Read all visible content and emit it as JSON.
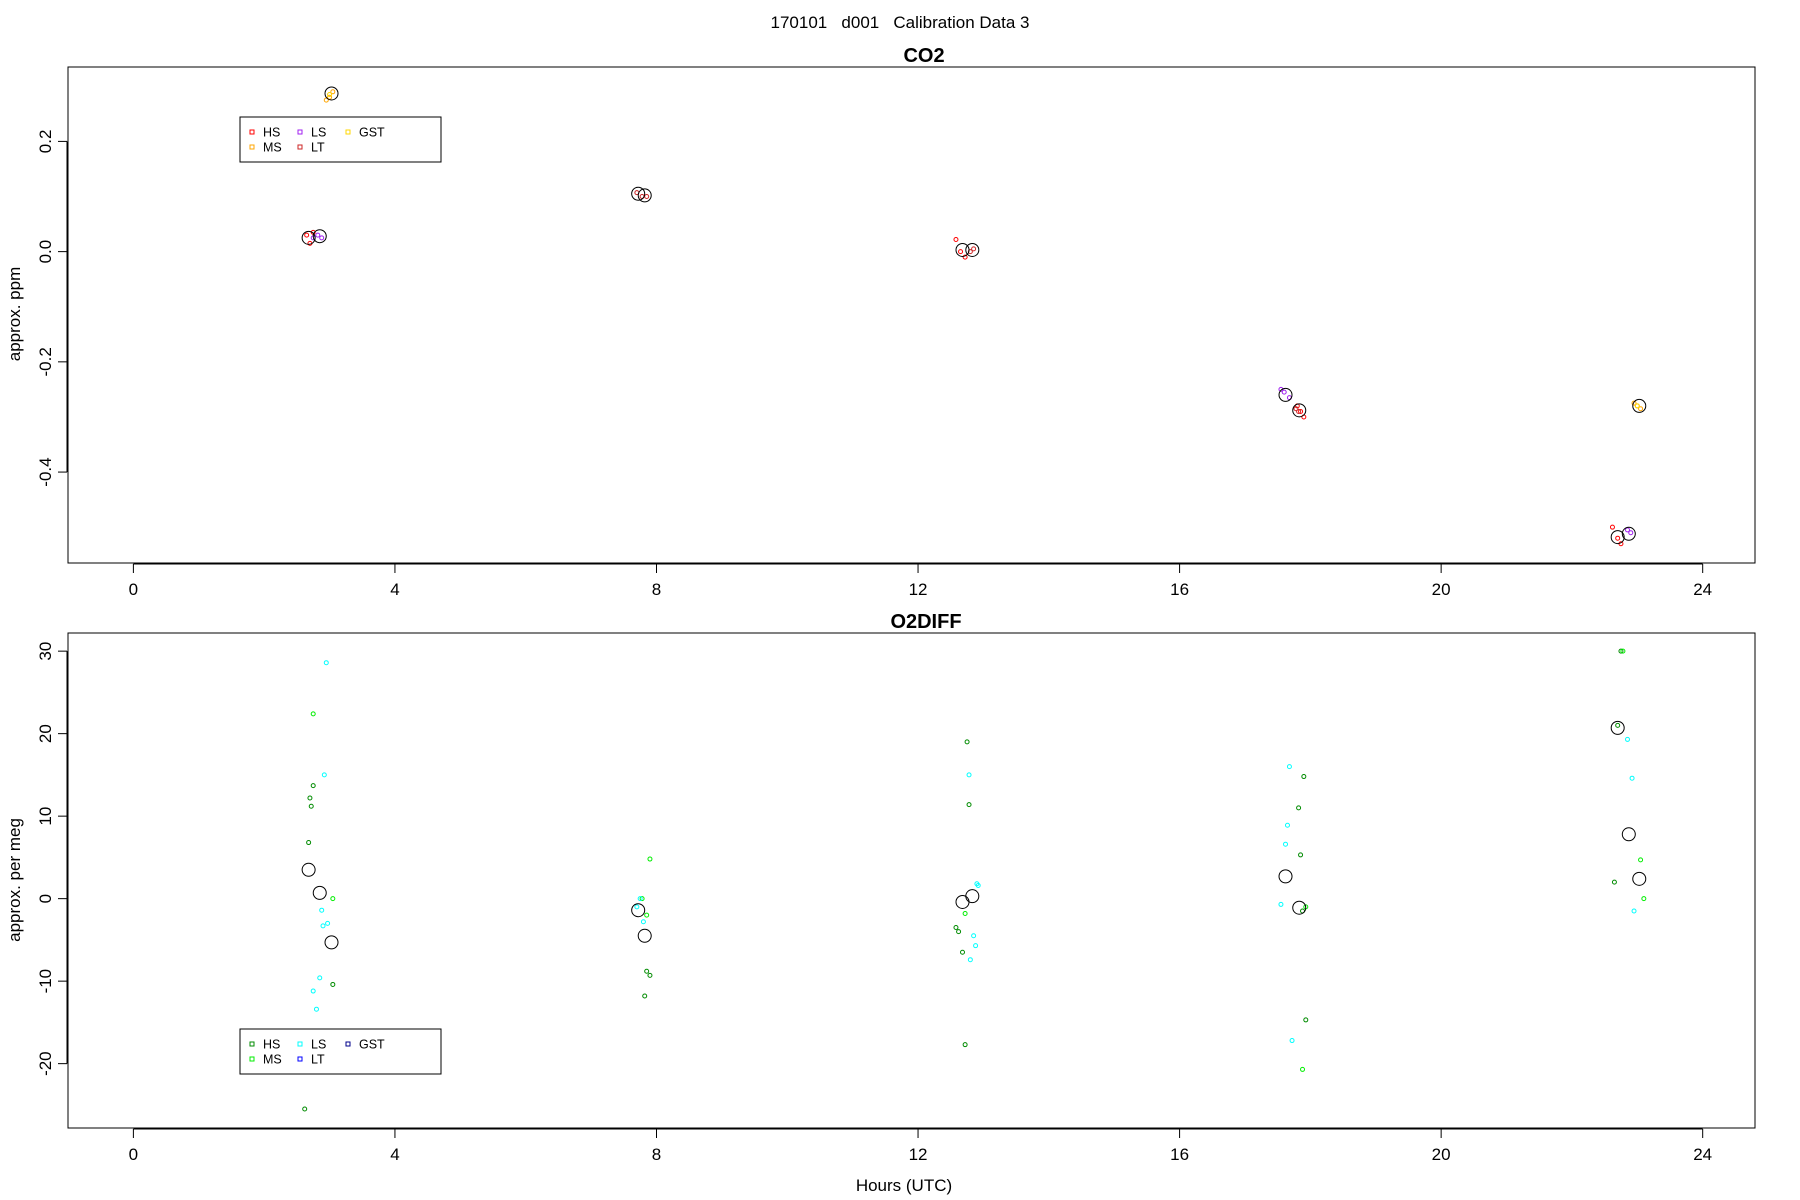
{
  "figure": {
    "title": "170101   d001   Calibration Data 3"
  },
  "chart_data": [
    {
      "type": "scatter",
      "title": "CO2",
      "xlabel": "",
      "ylabel": "approx. ppm",
      "xlim": [
        -1.0,
        24.8
      ],
      "ylim": [
        -0.565,
        0.335
      ],
      "xticks": [
        0,
        4,
        8,
        12,
        16,
        20,
        24
      ],
      "yticks": [
        -0.4,
        -0.2,
        0.0,
        0.2
      ],
      "ytick_labels": [
        "-0.4",
        "-0.2",
        "0.0",
        "0.2"
      ],
      "legend": {
        "position": "top-left",
        "columns": 3,
        "entries": [
          {
            "label": "HS",
            "color": "#ff0000"
          },
          {
            "label": "MS",
            "color": "#ffa500"
          },
          {
            "label": "LS",
            "color": "#a020f0"
          },
          {
            "label": "LT",
            "color": "#cd2626"
          },
          {
            "label": "GST",
            "color": "#ffd700"
          }
        ]
      },
      "series": [
        {
          "name": "HS",
          "color": "#ff0000",
          "x": [
            2.65,
            2.7,
            2.75,
            12.58,
            12.65,
            12.72,
            17.8,
            17.85,
            17.9,
            22.62,
            22.7,
            22.75
          ],
          "y": [
            0.03,
            0.015,
            0.035,
            0.022,
            0.0,
            -0.01,
            -0.28,
            -0.29,
            -0.3,
            -0.5,
            -0.52,
            -0.53
          ]
        },
        {
          "name": "MS",
          "color": "#ffa500",
          "x": [
            2.95,
            3.0,
            3.05,
            22.95,
            23.0,
            23.05
          ],
          "y": [
            0.275,
            0.28,
            0.29,
            -0.275,
            -0.28,
            -0.285
          ]
        },
        {
          "name": "LS",
          "color": "#a020f0",
          "x": [
            2.75,
            2.82,
            2.88,
            17.55,
            17.6,
            17.68,
            22.85,
            22.9
          ],
          "y": [
            0.025,
            0.03,
            0.025,
            -0.25,
            -0.255,
            -0.265,
            -0.505,
            -0.51
          ]
        },
        {
          "name": "LT",
          "color": "#cd2626",
          "x": [
            7.7,
            7.78,
            7.85,
            12.8,
            12.85,
            17.78,
            17.82
          ],
          "y": [
            0.107,
            0.1,
            0.1,
            0.0,
            0.005,
            -0.285,
            -0.29
          ]
        },
        {
          "name": "GST",
          "color": "#ffd700",
          "x": [
            3.0,
            23.0
          ],
          "y": [
            0.285,
            -0.28
          ]
        },
        {
          "name": "",
          "color": "#000000",
          "role": "means",
          "x": [
            2.68,
            2.85,
            3.03,
            7.72,
            7.82,
            12.68,
            12.83,
            17.62,
            17.83,
            22.7,
            22.87,
            23.03
          ],
          "y": [
            0.025,
            0.028,
            0.287,
            0.105,
            0.102,
            0.003,
            0.003,
            -0.26,
            -0.288,
            -0.518,
            -0.512,
            -0.28
          ]
        }
      ]
    },
    {
      "type": "scatter",
      "title": "O2DIFF",
      "xlabel": "Hours (UTC)",
      "ylabel": "approx. per meg",
      "xlim": [
        -1.0,
        24.8
      ],
      "ylim": [
        -27.8,
        32.2
      ],
      "xticks": [
        0,
        4,
        8,
        12,
        16,
        20,
        24
      ],
      "yticks": [
        -20,
        -10,
        0,
        10,
        20,
        30
      ],
      "ytick_labels": [
        "-20",
        "-10",
        "0",
        "10",
        "20",
        "30"
      ],
      "legend": {
        "position": "bottom-left",
        "columns": 3,
        "entries": [
          {
            "label": "HS",
            "color": "#008b00"
          },
          {
            "label": "MS",
            "color": "#00ee00"
          },
          {
            "label": "LS",
            "color": "#00ffff"
          },
          {
            "label": "LT",
            "color": "#0000ff"
          },
          {
            "label": "GST",
            "color": "#00008b"
          }
        ]
      },
      "series": [
        {
          "name": "HS",
          "color": "#008b00",
          "x": [
            2.62,
            2.68,
            2.7,
            2.72,
            2.75,
            3.05,
            7.82,
            7.85,
            7.9,
            12.58,
            12.62,
            12.68,
            12.72,
            12.75,
            12.78,
            17.82,
            17.85,
            17.88,
            17.9,
            17.93,
            22.65,
            22.7,
            22.75
          ],
          "y": [
            -25.5,
            6.8,
            12.2,
            11.2,
            13.7,
            -10.4,
            -11.8,
            -8.8,
            -9.3,
            -3.5,
            -4.0,
            -6.5,
            -17.7,
            19.0,
            11.4,
            11.0,
            5.3,
            -1.5,
            14.8,
            -14.7,
            2.0,
            21.0,
            30.0
          ]
        },
        {
          "name": "MS",
          "color": "#00ee00",
          "x": [
            2.75,
            3.05,
            7.78,
            7.85,
            7.9,
            12.72,
            17.88,
            17.93,
            22.78,
            23.05,
            23.1
          ],
          "y": [
            22.4,
            0.0,
            0.0,
            -2.0,
            4.8,
            -1.8,
            -20.7,
            -1.0,
            30.0,
            4.7,
            0.0
          ]
        },
        {
          "name": "LS",
          "color": "#00ffff",
          "x": [
            2.75,
            2.8,
            2.85,
            2.88,
            2.9,
            2.92,
            2.95,
            2.97,
            7.7,
            7.75,
            7.8,
            12.78,
            12.8,
            12.85,
            12.88,
            12.9,
            12.92,
            17.55,
            17.62,
            17.65,
            17.68,
            17.72,
            22.85,
            22.92,
            22.95
          ],
          "y": [
            -11.2,
            -13.4,
            -9.6,
            -1.4,
            -3.3,
            15.0,
            28.6,
            -3.0,
            -1.0,
            0.0,
            -2.8,
            15.0,
            -7.4,
            -4.5,
            -5.7,
            1.8,
            1.6,
            -0.7,
            6.6,
            8.9,
            16.0,
            -17.2,
            19.3,
            14.6,
            -1.5
          ]
        },
        {
          "name": "LT",
          "color": "#0000ff",
          "x": [],
          "y": []
        },
        {
          "name": "GST",
          "color": "#00008b",
          "x": [],
          "y": []
        },
        {
          "name": "",
          "color": "#000000",
          "role": "means",
          "x": [
            2.68,
            2.85,
            3.03,
            7.72,
            7.82,
            12.68,
            12.83,
            17.62,
            17.83,
            22.7,
            22.87,
            23.03
          ],
          "y": [
            3.5,
            0.7,
            -5.3,
            -1.4,
            -4.5,
            -0.4,
            0.3,
            2.7,
            -1.1,
            20.7,
            7.8,
            2.4
          ]
        }
      ]
    }
  ]
}
